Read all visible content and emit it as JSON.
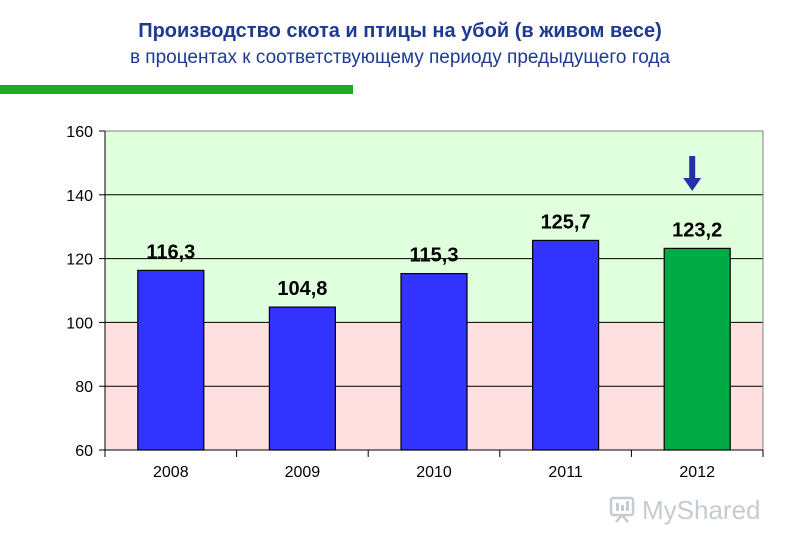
{
  "header": {
    "title": "Производство скота и птицы на убой (в живом весе)",
    "subtitle": "в процентах к соответствующему периоду предыдущего года"
  },
  "chart_data": {
    "type": "bar",
    "categories": [
      "2008",
      "2009",
      "2010",
      "2011",
      "2012"
    ],
    "values": [
      116.3,
      104.8,
      115.3,
      125.7,
      123.2
    ],
    "value_labels": [
      "116,3",
      "104,8",
      "115,3",
      "125,7",
      "123,2"
    ],
    "bar_colors": [
      "#3333ff",
      "#3333ff",
      "#3333ff",
      "#3333ff",
      "#00aa44"
    ],
    "ylim": [
      60,
      160
    ],
    "yticks": [
      60,
      80,
      100,
      120,
      140,
      160
    ],
    "grid": true,
    "background_bands": [
      {
        "from": 60,
        "to": 100,
        "color": "#ffe0e0"
      },
      {
        "from": 100,
        "to": 160,
        "color": "#e0ffdd"
      }
    ],
    "annotation": {
      "type": "arrow-down",
      "category": "2012",
      "color": "#2233aa"
    }
  },
  "watermark": {
    "text": "MyShared",
    "icon": "presentation-board-icon"
  }
}
